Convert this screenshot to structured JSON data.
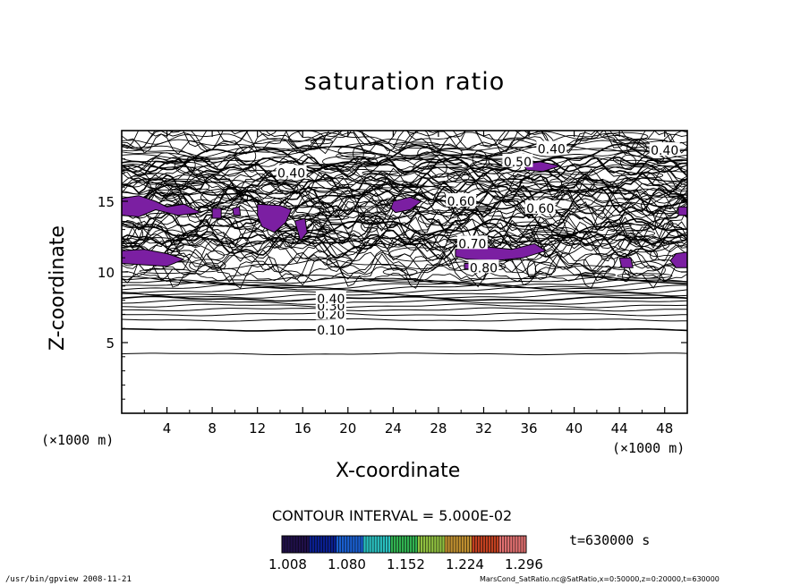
{
  "chart_data": {
    "type": "contour",
    "title": "saturation ratio",
    "xlabel": "X-coordinate",
    "ylabel": "Z-coordinate",
    "x_unit": "(×1000 m)",
    "y_unit": "(×1000 m)",
    "xlim": [
      0,
      50
    ],
    "ylim": [
      0,
      20
    ],
    "x_ticks": [
      4,
      8,
      12,
      16,
      20,
      24,
      28,
      32,
      36,
      40,
      44,
      48
    ],
    "y_ticks": [
      5,
      10,
      15
    ],
    "contour_interval": "CONTOUR INTERVAL = 5.000E-02",
    "contour_labels": [
      "0.10",
      "0.20",
      "0.30",
      "0.40",
      "0.40",
      "0.40",
      "0.40",
      "0.50",
      "0.60",
      "0.60",
      "0.70",
      "0.80"
    ],
    "labeled_levels": [
      {
        "label": "0.10",
        "z": 5.9
      },
      {
        "label": "0.20",
        "z": 7.0
      },
      {
        "label": "0.30",
        "z": 7.6
      },
      {
        "label": "0.40",
        "z": 8.1
      }
    ],
    "supersaturated_fill_color": "#7b1fa2",
    "colorbar": {
      "ticks": [
        "1.008",
        "1.080",
        "1.152",
        "1.224",
        "1.296"
      ],
      "colors": [
        "#20104a",
        "#0a1f8f",
        "#1a5fd0",
        "#2ac0c0",
        "#30b050",
        "#90c040",
        "#c09030",
        "#c04020",
        "#e07070"
      ]
    },
    "time_label": "t=630000 s"
  },
  "footer": {
    "left": "/usr/bin/gpview   2008-11-21",
    "right": "MarsCond_SatRatio.nc@SatRatio,x=0:50000,z=0:20000,t=630000"
  }
}
